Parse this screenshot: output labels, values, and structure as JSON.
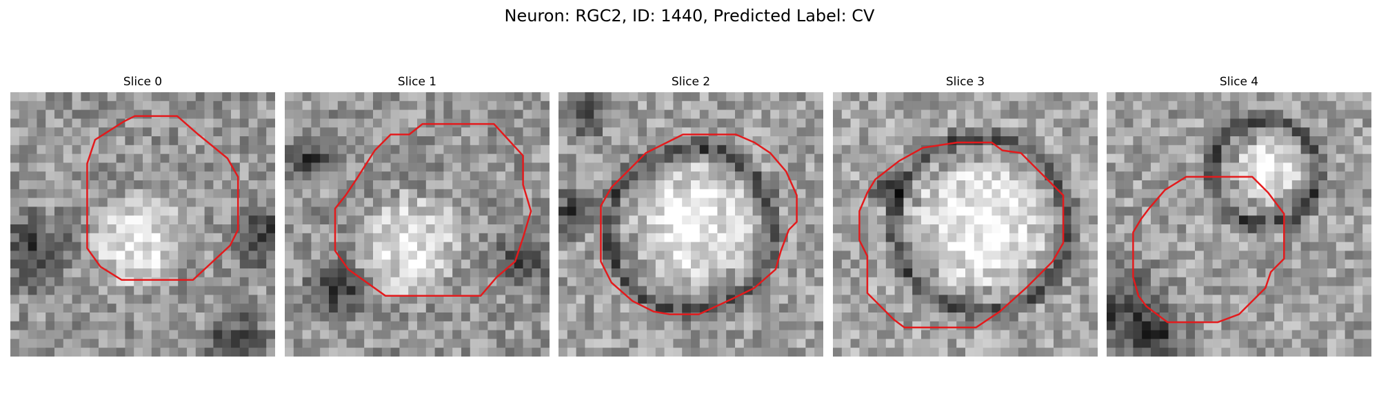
{
  "figure": {
    "title": "Neuron: RGC2, ID: 1440, Predicted Label: CV"
  },
  "panels": [
    {
      "title": "Slice 0"
    },
    {
      "title": "Slice 1"
    },
    {
      "title": "Slice 2"
    },
    {
      "title": "Slice 3"
    },
    {
      "title": "Slice 4"
    }
  ],
  "colors": {
    "contour": "#e31a1c",
    "background": "#ffffff"
  }
}
